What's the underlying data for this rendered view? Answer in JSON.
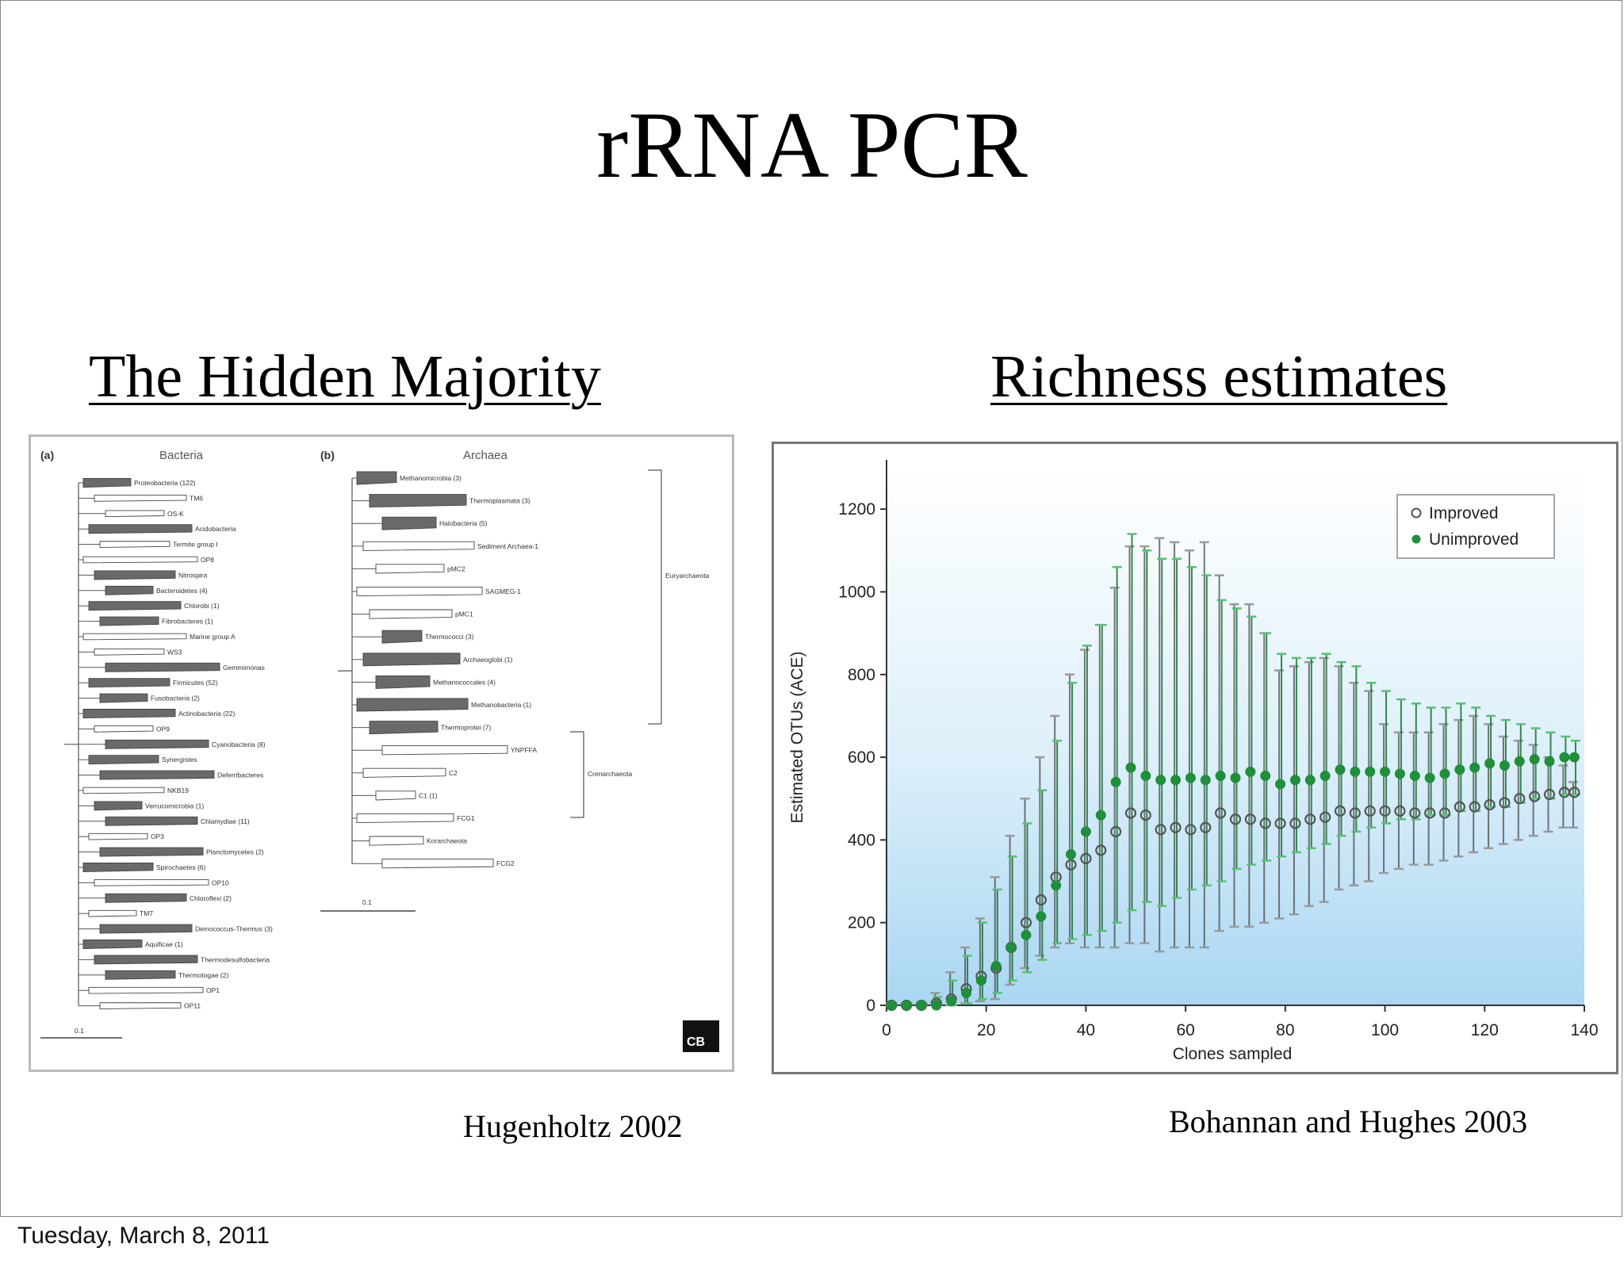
{
  "slide": {
    "title": "rRNA PCR",
    "left_heading": "The Hidden Majority",
    "right_heading": "Richness estimates",
    "left_citation": "Hugenholtz 2002",
    "right_citation": "Bohannan and Hughes 2003",
    "footer_date": "Tuesday, March 8, 2011"
  },
  "phylo_figure": {
    "panel_a_label": "(a)",
    "panel_a_title": "Bacteria",
    "panel_b_label": "(b)",
    "panel_b_title": "Archaea",
    "bacteria_taxa": [
      {
        "name": "Proteobacteria (122)",
        "filled": true
      },
      {
        "name": "TM6",
        "filled": false
      },
      {
        "name": "OS-K",
        "filled": false
      },
      {
        "name": "Acidobacteria",
        "filled": true
      },
      {
        "name": "Termite group I",
        "filled": false
      },
      {
        "name": "OP8",
        "filled": false
      },
      {
        "name": "Nitrospira",
        "filled": true
      },
      {
        "name": "Bacteroidetes (4)",
        "filled": true
      },
      {
        "name": "Chlorobi (1)",
        "filled": true
      },
      {
        "name": "Fibrobacteres (1)",
        "filled": true
      },
      {
        "name": "Marine group A",
        "filled": false
      },
      {
        "name": "WS3",
        "filled": false
      },
      {
        "name": "Gemmimonas",
        "filled": true
      },
      {
        "name": "Firmicutes (52)",
        "filled": true
      },
      {
        "name": "Fusobacteria (2)",
        "filled": true
      },
      {
        "name": "Actinobacteria (22)",
        "filled": true
      },
      {
        "name": "OP9",
        "filled": false
      },
      {
        "name": "Cyanobacteria (8)",
        "filled": true
      },
      {
        "name": "Synergistes",
        "filled": true
      },
      {
        "name": "Deferribacteres",
        "filled": true
      },
      {
        "name": "NKB19",
        "filled": false
      },
      {
        "name": "Verrucomicrobia (1)",
        "filled": true
      },
      {
        "name": "Chlamydiae (11)",
        "filled": true
      },
      {
        "name": "OP3",
        "filled": false
      },
      {
        "name": "Planctomycetes (2)",
        "filled": true
      },
      {
        "name": "Spirochaetes (6)",
        "filled": true
      },
      {
        "name": "OP10",
        "filled": false
      },
      {
        "name": "Chloroflexi (2)",
        "filled": true
      },
      {
        "name": "TM7",
        "filled": false
      },
      {
        "name": "Deinococcus-Thermus (3)",
        "filled": true
      },
      {
        "name": "Aquificae (1)",
        "filled": true
      },
      {
        "name": "Thermodesulfobacteria",
        "filled": true
      },
      {
        "name": "Thermotogae (2)",
        "filled": true
      },
      {
        "name": "OP1",
        "filled": false
      },
      {
        "name": "OP11",
        "filled": false
      }
    ],
    "archaea_taxa": [
      {
        "name": "Methanomicrobia (3)",
        "filled": true
      },
      {
        "name": "Thermoplasmata (3)",
        "filled": true
      },
      {
        "name": "Halobacteria (5)",
        "filled": true
      },
      {
        "name": "Sediment Archaea-1",
        "filled": false
      },
      {
        "name": "pMC2",
        "filled": false
      },
      {
        "name": "SAGMEG-1",
        "filled": false
      },
      {
        "name": "pMC1",
        "filled": false
      },
      {
        "name": "Thermococci (3)",
        "filled": true
      },
      {
        "name": "Archaeoglobi (1)",
        "filled": true
      },
      {
        "name": "Methanococcales (4)",
        "filled": true
      },
      {
        "name": "Methanobacteria (1)",
        "filled": true
      },
      {
        "name": "Thermoprotei (7)",
        "filled": true
      },
      {
        "name": "YNPFFA",
        "filled": false
      },
      {
        "name": "C2",
        "filled": false
      },
      {
        "name": "C1 (1)",
        "filled": false
      },
      {
        "name": "FCG1",
        "filled": false
      },
      {
        "name": "Korarchaeota",
        "filled": false
      },
      {
        "name": "FCG2",
        "filled": false
      }
    ],
    "group_labels": {
      "euryarchaeota": "Euryarchaeota",
      "crenarchaeota": "Crenarchaeota"
    },
    "scale_label": "0.1",
    "logo_text": "CB"
  },
  "chart_data": {
    "type": "scatter",
    "xlabel": "Clones sampled",
    "ylabel": "Estimated OTUs (ACE)",
    "xlim": [
      0,
      140
    ],
    "ylim": [
      0,
      1200
    ],
    "xticks": [
      0,
      20,
      40,
      60,
      80,
      100,
      120,
      140
    ],
    "yticks": [
      0,
      200,
      400,
      600,
      800,
      1000,
      1200
    ],
    "legend_position": "top-right",
    "series": [
      {
        "name": "Improved",
        "marker": "open-circle",
        "color": "#6e6e6e",
        "x": [
          1,
          4,
          7,
          10,
          13,
          16,
          19,
          22,
          25,
          28,
          31,
          34,
          37,
          40,
          43,
          46,
          49,
          52,
          55,
          58,
          61,
          64,
          67,
          70,
          73,
          76,
          79,
          82,
          85,
          88,
          91,
          94,
          97,
          100,
          103,
          106,
          109,
          112,
          115,
          118,
          121,
          124,
          127,
          130,
          133,
          136,
          138
        ],
        "y": [
          0,
          0,
          0,
          5,
          15,
          40,
          70,
          90,
          140,
          200,
          255,
          310,
          340,
          355,
          375,
          420,
          465,
          460,
          425,
          430,
          425,
          430,
          465,
          450,
          450,
          440,
          440,
          440,
          450,
          455,
          470,
          465,
          470,
          470,
          470,
          465,
          465,
          465,
          480,
          480,
          485,
          490,
          500,
          505,
          510,
          515,
          515
        ],
        "err_low": [
          0,
          0,
          0,
          0,
          0,
          5,
          10,
          15,
          50,
          90,
          120,
          140,
          150,
          140,
          140,
          140,
          150,
          150,
          130,
          140,
          140,
          140,
          180,
          190,
          190,
          200,
          210,
          220,
          240,
          250,
          280,
          290,
          300,
          320,
          330,
          340,
          340,
          350,
          360,
          370,
          380,
          390,
          400,
          410,
          420,
          430,
          430
        ],
        "err_high": [
          5,
          5,
          5,
          30,
          80,
          140,
          210,
          310,
          410,
          500,
          600,
          700,
          800,
          860,
          920,
          1010,
          1110,
          1110,
          1130,
          1120,
          1100,
          1120,
          1040,
          970,
          970,
          900,
          810,
          820,
          830,
          840,
          820,
          780,
          760,
          680,
          660,
          660,
          660,
          680,
          690,
          700,
          680,
          650,
          640,
          630,
          600,
          580,
          540
        ]
      },
      {
        "name": "Unimproved",
        "marker": "filled-circle",
        "color": "#1f8f3a",
        "x": [
          1,
          4,
          7,
          10,
          13,
          16,
          19,
          22,
          25,
          28,
          31,
          34,
          37,
          40,
          43,
          46,
          49,
          52,
          55,
          58,
          61,
          64,
          67,
          70,
          73,
          76,
          79,
          82,
          85,
          88,
          91,
          94,
          97,
          100,
          103,
          106,
          109,
          112,
          115,
          118,
          121,
          124,
          127,
          130,
          133,
          136,
          138
        ],
        "y": [
          0,
          0,
          0,
          0,
          10,
          30,
          60,
          95,
          140,
          170,
          215,
          290,
          365,
          420,
          460,
          540,
          575,
          555,
          545,
          545,
          550,
          545,
          555,
          550,
          565,
          555,
          535,
          545,
          545,
          555,
          570,
          565,
          565,
          565,
          560,
          555,
          550,
          560,
          570,
          575,
          585,
          580,
          590,
          595,
          590,
          600,
          600
        ],
        "err_low": [
          0,
          0,
          0,
          0,
          0,
          5,
          15,
          30,
          60,
          80,
          110,
          150,
          160,
          170,
          180,
          200,
          230,
          250,
          240,
          260,
          280,
          290,
          300,
          330,
          340,
          350,
          360,
          370,
          380,
          390,
          410,
          420,
          430,
          440,
          450,
          450,
          460,
          460,
          470,
          470,
          480,
          480,
          490,
          500,
          500,
          510,
          510
        ],
        "err_high": [
          5,
          5,
          5,
          20,
          60,
          120,
          200,
          280,
          360,
          440,
          520,
          640,
          780,
          870,
          920,
          1060,
          1140,
          1100,
          1080,
          1080,
          1060,
          1040,
          980,
          960,
          940,
          900,
          850,
          840,
          840,
          850,
          830,
          820,
          780,
          760,
          740,
          730,
          720,
          720,
          730,
          720,
          700,
          690,
          680,
          670,
          660,
          650,
          640
        ]
      }
    ]
  }
}
